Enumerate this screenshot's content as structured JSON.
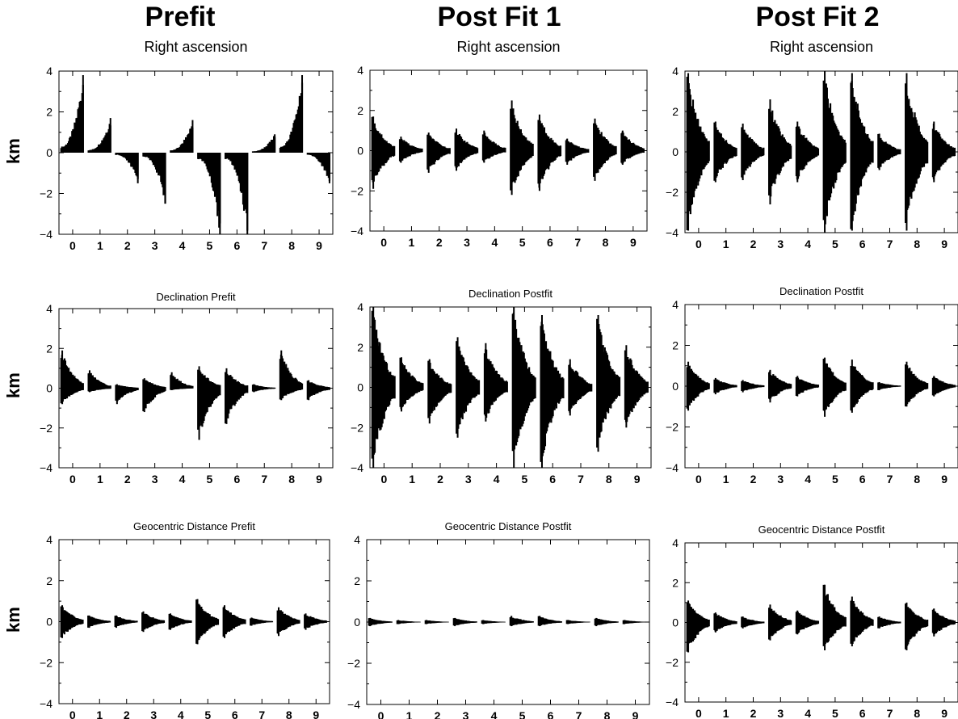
{
  "figure": {
    "columns": [
      "Prefit",
      "Post Fit 1",
      "Post Fit 2"
    ],
    "row_ylabel": "km"
  },
  "chart_data": [
    {
      "id": "ra_prefit",
      "type": "area",
      "title": "Right ascension",
      "xlabel": "",
      "ylabel": "km",
      "ylim": [
        -4,
        4
      ],
      "yticks": [
        -4,
        -2,
        0,
        2,
        4
      ],
      "xticks": [
        0,
        1,
        2,
        3,
        4,
        5,
        6,
        7,
        8,
        9
      ],
      "series": [
        {
          "values": [
            {
              "x": 0,
              "min": 0.0,
              "max": 3.8
            },
            {
              "x": 1,
              "min": 0.0,
              "max": 1.7
            },
            {
              "x": 2,
              "min": -1.5,
              "max": 0.0
            },
            {
              "x": 3,
              "min": -2.5,
              "max": 0.0
            },
            {
              "x": 4,
              "min": 0.0,
              "max": 1.6
            },
            {
              "x": 5,
              "min": -4.0,
              "max": 0.0
            },
            {
              "x": 6,
              "min": -4.0,
              "max": 0.0
            },
            {
              "x": 7,
              "min": 0.0,
              "max": 0.9
            },
            {
              "x": 8,
              "min": 0.0,
              "max": 3.8
            },
            {
              "x": 9,
              "min": -1.5,
              "max": 0.0
            }
          ]
        }
      ]
    },
    {
      "id": "ra_post1",
      "type": "area",
      "title": "Right ascension",
      "xlabel": "",
      "ylabel": "",
      "ylim": [
        -4,
        4
      ],
      "yticks": [
        -4,
        -2,
        0,
        2,
        4
      ],
      "xticks": [
        0,
        1,
        2,
        3,
        4,
        5,
        6,
        7,
        8,
        9
      ],
      "series": [
        {
          "values": [
            {
              "x": 0,
              "min": -1.9,
              "max": 1.7
            },
            {
              "x": 1,
              "min": -0.6,
              "max": 0.7
            },
            {
              "x": 2,
              "min": -1.1,
              "max": 0.9
            },
            {
              "x": 3,
              "min": -1.0,
              "max": 1.1
            },
            {
              "x": 4,
              "min": -0.6,
              "max": 1.0
            },
            {
              "x": 5,
              "min": -2.2,
              "max": 2.5
            },
            {
              "x": 6,
              "min": -2.0,
              "max": 1.8
            },
            {
              "x": 7,
              "min": -0.7,
              "max": 0.6
            },
            {
              "x": 8,
              "min": -1.5,
              "max": 1.6
            },
            {
              "x": 9,
              "min": -0.7,
              "max": 1.0
            }
          ]
        }
      ]
    },
    {
      "id": "ra_post2",
      "type": "area",
      "title": "Right ascension",
      "xlabel": "",
      "ylabel": "",
      "ylim": [
        -4,
        4
      ],
      "yticks": [
        -4,
        -2,
        0,
        2,
        4
      ],
      "xticks": [
        0,
        1,
        2,
        3,
        4,
        5,
        6,
        7,
        8,
        9
      ],
      "series": [
        {
          "values": [
            {
              "x": 0,
              "min": -3.9,
              "max": 3.9
            },
            {
              "x": 1,
              "min": -1.5,
              "max": 1.5
            },
            {
              "x": 2,
              "min": -1.4,
              "max": 1.4
            },
            {
              "x": 3,
              "min": -2.6,
              "max": 2.6
            },
            {
              "x": 4,
              "min": -1.5,
              "max": 1.5
            },
            {
              "x": 5,
              "min": -4.0,
              "max": 4.0
            },
            {
              "x": 6,
              "min": -3.9,
              "max": 3.9
            },
            {
              "x": 7,
              "min": -0.9,
              "max": 0.9
            },
            {
              "x": 8,
              "min": -3.9,
              "max": 3.9
            },
            {
              "x": 9,
              "min": -1.5,
              "max": 1.5
            }
          ]
        }
      ]
    },
    {
      "id": "dec_prefit",
      "type": "area",
      "title": "Declination Prefit",
      "xlabel": "",
      "ylabel": "km",
      "ylim": [
        -4,
        4
      ],
      "yticks": [
        -4,
        -2,
        0,
        2,
        4
      ],
      "xticks": [
        0,
        1,
        2,
        3,
        4,
        5,
        6,
        7,
        8,
        9
      ],
      "series": [
        {
          "values": [
            {
              "x": 0,
              "min": -0.8,
              "max": 1.9
            },
            {
              "x": 1,
              "min": -0.2,
              "max": 0.9
            },
            {
              "x": 2,
              "min": -0.8,
              "max": 0.2
            },
            {
              "x": 3,
              "min": -1.2,
              "max": 0.5
            },
            {
              "x": 4,
              "min": -0.1,
              "max": 0.8
            },
            {
              "x": 5,
              "min": -2.6,
              "max": 1.1
            },
            {
              "x": 6,
              "min": -1.8,
              "max": 1.0
            },
            {
              "x": 7,
              "min": -0.2,
              "max": 0.2
            },
            {
              "x": 8,
              "min": -0.6,
              "max": 1.9
            },
            {
              "x": 9,
              "min": -0.6,
              "max": 0.4
            }
          ]
        }
      ]
    },
    {
      "id": "dec_post1",
      "type": "area",
      "title": "Declination Postfit",
      "xlabel": "",
      "ylabel": "",
      "ylim": [
        -4,
        4
      ],
      "yticks": [
        -4,
        -2,
        0,
        2,
        4
      ],
      "xticks": [
        0,
        1,
        2,
        3,
        4,
        5,
        6,
        7,
        8,
        9
      ],
      "series": [
        {
          "values": [
            {
              "x": 0,
              "min": -4.0,
              "max": 4.0
            },
            {
              "x": 1,
              "min": -1.2,
              "max": 1.5
            },
            {
              "x": 2,
              "min": -1.8,
              "max": 1.4
            },
            {
              "x": 3,
              "min": -2.5,
              "max": 2.5
            },
            {
              "x": 4,
              "min": -1.7,
              "max": 2.2
            },
            {
              "x": 5,
              "min": -4.0,
              "max": 4.0
            },
            {
              "x": 6,
              "min": -4.0,
              "max": 3.6
            },
            {
              "x": 7,
              "min": -1.4,
              "max": 1.4
            },
            {
              "x": 8,
              "min": -3.2,
              "max": 3.6
            },
            {
              "x": 9,
              "min": -2.0,
              "max": 2.1
            }
          ]
        }
      ]
    },
    {
      "id": "dec_post2",
      "type": "area",
      "title": "Declination Postfit",
      "xlabel": "",
      "ylabel": "",
      "ylim": [
        -4,
        4
      ],
      "yticks": [
        -4,
        -2,
        0,
        2,
        4
      ],
      "xticks": [
        0,
        1,
        2,
        3,
        4,
        5,
        6,
        7,
        8,
        9
      ],
      "series": [
        {
          "values": [
            {
              "x": 0,
              "min": -1.2,
              "max": 1.2
            },
            {
              "x": 1,
              "min": -0.4,
              "max": 0.4
            },
            {
              "x": 2,
              "min": -0.3,
              "max": 0.3
            },
            {
              "x": 3,
              "min": -0.8,
              "max": 0.8
            },
            {
              "x": 4,
              "min": -0.5,
              "max": 0.5
            },
            {
              "x": 5,
              "min": -1.5,
              "max": 1.4
            },
            {
              "x": 6,
              "min": -1.3,
              "max": 1.3
            },
            {
              "x": 7,
              "min": -0.2,
              "max": 0.2
            },
            {
              "x": 8,
              "min": -1.0,
              "max": 1.2
            },
            {
              "x": 9,
              "min": -0.5,
              "max": 0.5
            }
          ]
        }
      ]
    },
    {
      "id": "geo_prefit",
      "type": "area",
      "title": "Geocentric Distance Prefit",
      "xlabel": "",
      "ylabel": "km",
      "ylim": [
        -4,
        4
      ],
      "yticks": [
        -4,
        -2,
        0,
        2,
        4
      ],
      "xticks": [
        0,
        1,
        2,
        3,
        4,
        5,
        6,
        7,
        8,
        9
      ],
      "series": [
        {
          "values": [
            {
              "x": 0,
              "min": -0.8,
              "max": 0.8
            },
            {
              "x": 1,
              "min": -0.3,
              "max": 0.3
            },
            {
              "x": 2,
              "min": -0.3,
              "max": 0.3
            },
            {
              "x": 3,
              "min": -0.5,
              "max": 0.5
            },
            {
              "x": 4,
              "min": -0.4,
              "max": 0.4
            },
            {
              "x": 5,
              "min": -1.1,
              "max": 1.1
            },
            {
              "x": 6,
              "min": -0.8,
              "max": 0.8
            },
            {
              "x": 7,
              "min": -0.2,
              "max": 0.2
            },
            {
              "x": 8,
              "min": -0.7,
              "max": 0.7
            },
            {
              "x": 9,
              "min": -0.4,
              "max": 0.4
            }
          ]
        }
      ]
    },
    {
      "id": "geo_post1",
      "type": "area",
      "title": "Geocentric Distance Postfit",
      "xlabel": "",
      "ylabel": "",
      "ylim": [
        -4,
        4
      ],
      "yticks": [
        -4,
        -2,
        0,
        2,
        4
      ],
      "xticks": [
        0,
        1,
        2,
        3,
        4,
        5,
        6,
        7,
        8,
        9
      ],
      "series": [
        {
          "values": [
            {
              "x": 0,
              "min": -0.2,
              "max": 0.2
            },
            {
              "x": 1,
              "min": -0.1,
              "max": 0.1
            },
            {
              "x": 2,
              "min": -0.1,
              "max": 0.1
            },
            {
              "x": 3,
              "min": -0.2,
              "max": 0.2
            },
            {
              "x": 4,
              "min": -0.1,
              "max": 0.1
            },
            {
              "x": 5,
              "min": -0.2,
              "max": 0.3
            },
            {
              "x": 6,
              "min": -0.2,
              "max": 0.3
            },
            {
              "x": 7,
              "min": -0.1,
              "max": 0.1
            },
            {
              "x": 8,
              "min": -0.2,
              "max": 0.2
            },
            {
              "x": 9,
              "min": -0.1,
              "max": 0.1
            }
          ]
        }
      ]
    },
    {
      "id": "geo_post2",
      "type": "area",
      "title": "Geocentric Distance Postfit",
      "xlabel": "",
      "ylabel": "",
      "ylim": [
        -4,
        4
      ],
      "yticks": [
        -4,
        -2,
        0,
        2,
        4
      ],
      "xticks": [
        0,
        1,
        2,
        3,
        4,
        5,
        6,
        7,
        8,
        9
      ],
      "series": [
        {
          "values": [
            {
              "x": 0,
              "min": -1.5,
              "max": 1.1
            },
            {
              "x": 1,
              "min": -0.5,
              "max": 0.5
            },
            {
              "x": 2,
              "min": -0.3,
              "max": 0.3
            },
            {
              "x": 3,
              "min": -0.9,
              "max": 0.9
            },
            {
              "x": 4,
              "min": -0.6,
              "max": 0.6
            },
            {
              "x": 5,
              "min": -1.4,
              "max": 1.9
            },
            {
              "x": 6,
              "min": -1.2,
              "max": 1.3
            },
            {
              "x": 7,
              "min": -0.3,
              "max": 0.3
            },
            {
              "x": 8,
              "min": -1.4,
              "max": 1.0
            },
            {
              "x": 9,
              "min": -0.7,
              "max": 0.7
            }
          ]
        }
      ]
    }
  ]
}
